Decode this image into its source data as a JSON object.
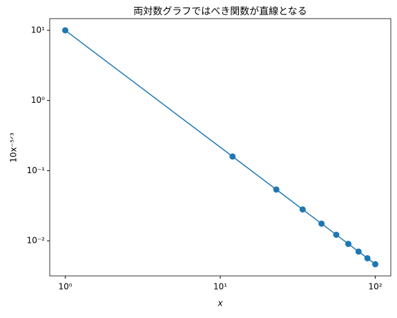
{
  "chart_data": {
    "type": "line",
    "title": "両対数グラフではべき関数が直線となる",
    "xlabel": "x",
    "ylabel": "10x⁻⁵ᐟ³",
    "x": [
      1,
      12,
      23,
      34,
      45,
      56,
      67,
      78,
      89,
      100
    ],
    "series": [
      {
        "color": "#1f77b4",
        "values": [
          10,
          0.159,
          0.0538,
          0.028,
          0.01757,
          0.0122,
          0.00904,
          0.00702,
          0.00564,
          0.004642
        ]
      }
    ],
    "xscale": "log",
    "yscale": "log",
    "xlim": [
      0.794,
      125.9
    ],
    "ylim": [
      0.00316,
      14.68
    ],
    "xticks": [
      {
        "value": 1,
        "label": "10⁰"
      },
      {
        "value": 10,
        "label": "10¹"
      },
      {
        "value": 100,
        "label": "10²"
      }
    ],
    "yticks": [
      {
        "value": 0.01,
        "label": "10⁻²"
      },
      {
        "value": 0.1,
        "label": "10⁻¹"
      },
      {
        "value": 1,
        "label": "10⁰"
      },
      {
        "value": 10,
        "label": "10¹"
      }
    ],
    "markers": true
  }
}
